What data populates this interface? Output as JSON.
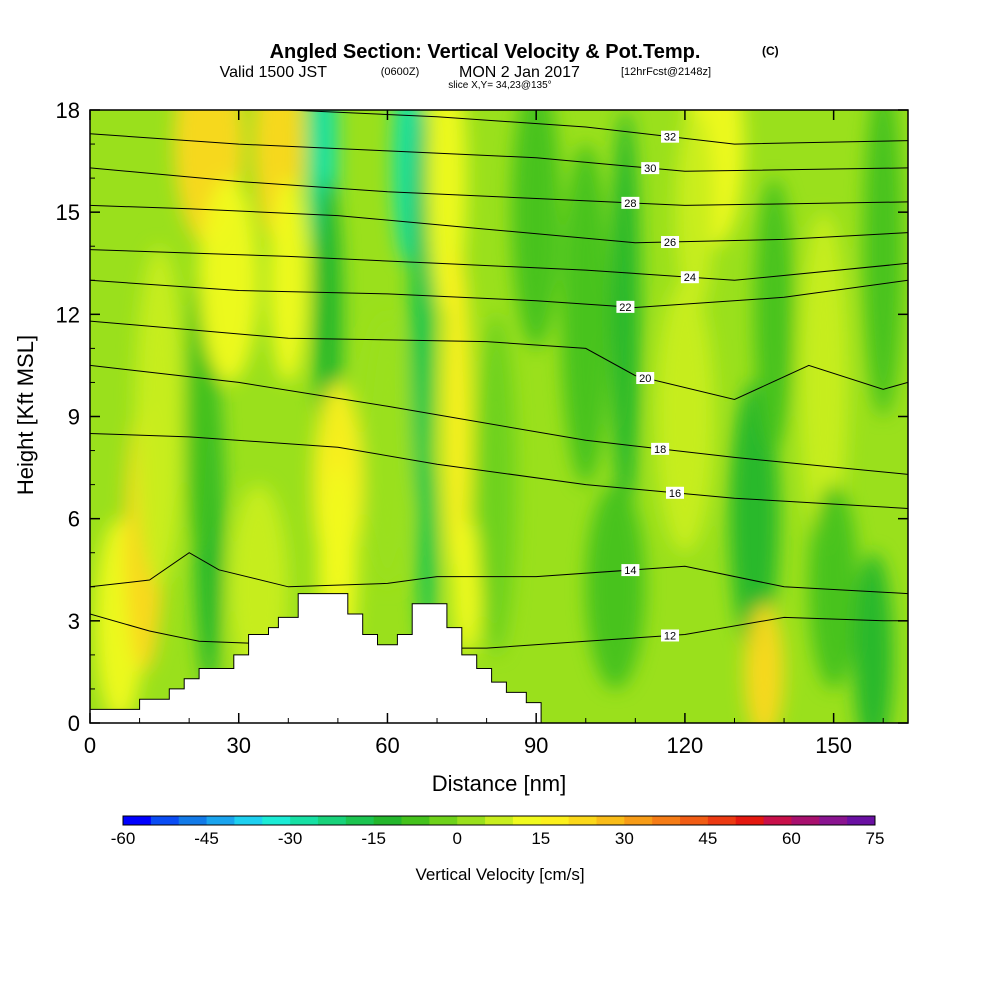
{
  "header": {
    "title": "Angled Section: Vertical Velocity & Pot.Temp.",
    "title_mark": "(C)",
    "valid_label": "Valid 1500 JST",
    "zulu": "(0600Z)",
    "date": "MON 2 Jan 2017",
    "forecast": "[12hrFcst@2148z]",
    "slice": "slice X,Y= 34,23@135°"
  },
  "chart_data": {
    "type": "heatmap",
    "xlabel": "Distance [nm]",
    "ylabel": "Height [Kft MSL]",
    "xlim": [
      0,
      165
    ],
    "ylim": [
      0,
      18
    ],
    "x_ticks": [
      0,
      30,
      60,
      90,
      120,
      150
    ],
    "y_ticks": [
      0,
      3,
      6,
      9,
      12,
      15,
      18
    ],
    "colorbar": {
      "label": "Vertical Velocity [cm/s]",
      "ticks": [
        -60,
        -45,
        -30,
        -15,
        0,
        15,
        30,
        45,
        60,
        75
      ],
      "min": -60,
      "max": 75,
      "step": 5,
      "colors": [
        "#0000ff",
        "#0a4cf4",
        "#127ae8",
        "#1aa4ee",
        "#1ed0f0",
        "#1cecd6",
        "#17e0a4",
        "#18d27a",
        "#1cc450",
        "#24b62c",
        "#44c21c",
        "#6ed21a",
        "#9ae01c",
        "#c8ee1e",
        "#f0fa1e",
        "#fcf01c",
        "#fbd81a",
        "#f9bc18",
        "#f79c17",
        "#f57c16",
        "#f15c14",
        "#ec3a12",
        "#e41810",
        "#c8104a",
        "#a8106e",
        "#8a1490",
        "#6a10a2"
      ]
    },
    "velocity_field": {
      "description_units": "cm/s",
      "background": 2,
      "cells": [
        {
          "x": 6,
          "y": 3,
          "sx": 5,
          "sy": 3,
          "v": 12
        },
        {
          "x": 11,
          "y": 5.5,
          "sx": 4,
          "sy": 4,
          "v": 22
        },
        {
          "x": 14,
          "y": 9,
          "sx": 5,
          "sy": 5,
          "v": 8
        },
        {
          "x": 24,
          "y": 6,
          "sx": 3,
          "sy": 5,
          "v": -14
        },
        {
          "x": 22,
          "y": 9,
          "sx": 3,
          "sy": 4,
          "v": -8
        },
        {
          "x": 24,
          "y": 17,
          "sx": 7,
          "sy": 3,
          "v": 22
        },
        {
          "x": 28,
          "y": 13,
          "sx": 6,
          "sy": 3,
          "v": 10
        },
        {
          "x": 38,
          "y": 17,
          "sx": 5,
          "sy": 3,
          "v": 24
        },
        {
          "x": 40,
          "y": 13,
          "sx": 4,
          "sy": 3,
          "v": 14
        },
        {
          "x": 34,
          "y": 4,
          "sx": 6,
          "sy": 3,
          "v": 8
        },
        {
          "x": 47,
          "y": 17,
          "sx": 3,
          "sy": 4,
          "v": -30
        },
        {
          "x": 48,
          "y": 12,
          "sx": 3,
          "sy": 4,
          "v": -14
        },
        {
          "x": 50,
          "y": 7,
          "sx": 5,
          "sy": 3,
          "v": 16
        },
        {
          "x": 50,
          "y": 4.5,
          "sx": 4,
          "sy": 3,
          "v": 10
        },
        {
          "x": 60,
          "y": 8,
          "sx": 5,
          "sy": 4,
          "v": 2
        },
        {
          "x": 64,
          "y": 16.5,
          "sx": 3,
          "sy": 3,
          "v": -28
        },
        {
          "x": 67,
          "y": 12,
          "sx": 2.5,
          "sy": 6,
          "v": -20
        },
        {
          "x": 68,
          "y": 5,
          "sx": 2,
          "sy": 3,
          "v": -18
        },
        {
          "x": 72,
          "y": 16,
          "sx": 4,
          "sy": 4,
          "v": 14
        },
        {
          "x": 74,
          "y": 9,
          "sx": 3,
          "sy": 5,
          "v": 16
        },
        {
          "x": 76,
          "y": 4,
          "sx": 3,
          "sy": 2,
          "v": 14
        },
        {
          "x": 82,
          "y": 7,
          "sx": 4,
          "sy": 5,
          "v": -4
        },
        {
          "x": 90,
          "y": 15,
          "sx": 5,
          "sy": 4,
          "v": -6
        },
        {
          "x": 100,
          "y": 12,
          "sx": 5,
          "sy": 5,
          "v": -10
        },
        {
          "x": 108,
          "y": 12,
          "sx": 3,
          "sy": 6,
          "v": -14
        },
        {
          "x": 106,
          "y": 4,
          "sx": 6,
          "sy": 3,
          "v": -6
        },
        {
          "x": 120,
          "y": 9,
          "sx": 6,
          "sy": 4,
          "v": 6
        },
        {
          "x": 126,
          "y": 17,
          "sx": 6,
          "sy": 3,
          "v": 14
        },
        {
          "x": 122,
          "y": 15,
          "sx": 4,
          "sy": 3,
          "v": 8
        },
        {
          "x": 134,
          "y": 6,
          "sx": 5,
          "sy": 4,
          "v": -14
        },
        {
          "x": 138,
          "y": 12,
          "sx": 4,
          "sy": 4,
          "v": -10
        },
        {
          "x": 136,
          "y": 1.5,
          "sx": 4,
          "sy": 2,
          "v": 20
        },
        {
          "x": 148,
          "y": 10,
          "sx": 5,
          "sy": 5,
          "v": 6
        },
        {
          "x": 150,
          "y": 4,
          "sx": 5,
          "sy": 3,
          "v": -10
        },
        {
          "x": 158,
          "y": 2,
          "sx": 4,
          "sy": 3,
          "v": -14
        },
        {
          "x": 160,
          "y": 14,
          "sx": 4,
          "sy": 5,
          "v": -6
        }
      ]
    },
    "terrain": [
      [
        0,
        0.4
      ],
      [
        10,
        0.4
      ],
      [
        10,
        0.7
      ],
      [
        16,
        0.7
      ],
      [
        16,
        1
      ],
      [
        19,
        1
      ],
      [
        19,
        1.3
      ],
      [
        22,
        1.3
      ],
      [
        22,
        1.6
      ],
      [
        29,
        1.6
      ],
      [
        29,
        2
      ],
      [
        32,
        2
      ],
      [
        32,
        2.6
      ],
      [
        36,
        2.6
      ],
      [
        36,
        2.8
      ],
      [
        38,
        2.8
      ],
      [
        38,
        3.1
      ],
      [
        42,
        3.1
      ],
      [
        42,
        3.8
      ],
      [
        52,
        3.8
      ],
      [
        52,
        3.2
      ],
      [
        55,
        3.2
      ],
      [
        55,
        2.6
      ],
      [
        58,
        2.6
      ],
      [
        58,
        2.3
      ],
      [
        62,
        2.3
      ],
      [
        62,
        2.6
      ],
      [
        65,
        2.6
      ],
      [
        65,
        3.5
      ],
      [
        72,
        3.5
      ],
      [
        72,
        2.8
      ],
      [
        75,
        2.8
      ],
      [
        75,
        2
      ],
      [
        78,
        2
      ],
      [
        78,
        1.6
      ],
      [
        81,
        1.6
      ],
      [
        81,
        1.2
      ],
      [
        84,
        1.2
      ],
      [
        84,
        0.9
      ],
      [
        88,
        0.9
      ],
      [
        88,
        0.6
      ],
      [
        91,
        0.6
      ],
      [
        91,
        0
      ],
      [
        0,
        0
      ]
    ],
    "isentropes": [
      {
        "theta": 12,
        "pts": [
          [
            0,
            3.2
          ],
          [
            12,
            2.7
          ],
          [
            22,
            2.4
          ],
          [
            60,
            2.2
          ],
          [
            80,
            2.2
          ],
          [
            100,
            2.4
          ],
          [
            120,
            2.6
          ],
          [
            140,
            3.1
          ],
          [
            160,
            3.0
          ],
          [
            165,
            3.0
          ]
        ],
        "label_x": 117
      },
      {
        "theta": 14,
        "pts": [
          [
            0,
            4.0
          ],
          [
            12,
            4.2
          ],
          [
            20,
            5.0
          ],
          [
            26,
            4.5
          ],
          [
            40,
            4.0
          ],
          [
            60,
            4.1
          ],
          [
            70,
            4.3
          ],
          [
            90,
            4.3
          ],
          [
            120,
            4.6
          ],
          [
            140,
            4.0
          ],
          [
            165,
            3.8
          ]
        ],
        "label_x": 109
      },
      {
        "theta": 16,
        "pts": [
          [
            0,
            8.5
          ],
          [
            20,
            8.4
          ],
          [
            50,
            8.1
          ],
          [
            70,
            7.6
          ],
          [
            100,
            7.0
          ],
          [
            130,
            6.6
          ],
          [
            165,
            6.3
          ]
        ],
        "label_x": 118
      },
      {
        "theta": 18,
        "pts": [
          [
            0,
            10.5
          ],
          [
            30,
            10.0
          ],
          [
            60,
            9.3
          ],
          [
            100,
            8.3
          ],
          [
            130,
            7.8
          ],
          [
            165,
            7.3
          ]
        ],
        "label_x": 115
      },
      {
        "theta": 20,
        "pts": [
          [
            0,
            11.8
          ],
          [
            40,
            11.3
          ],
          [
            80,
            11.2
          ],
          [
            100,
            11.0
          ],
          [
            110,
            10.2
          ],
          [
            130,
            9.5
          ],
          [
            145,
            10.5
          ],
          [
            160,
            9.8
          ],
          [
            165,
            10.0
          ]
        ],
        "label_x": 112
      },
      {
        "theta": 22,
        "pts": [
          [
            0,
            13.0
          ],
          [
            30,
            12.7
          ],
          [
            60,
            12.6
          ],
          [
            90,
            12.4
          ],
          [
            110,
            12.2
          ],
          [
            140,
            12.5
          ],
          [
            165,
            13.0
          ]
        ],
        "label_x": 108
      },
      {
        "theta": 24,
        "pts": [
          [
            0,
            13.9
          ],
          [
            40,
            13.7
          ],
          [
            70,
            13.5
          ],
          [
            100,
            13.3
          ],
          [
            130,
            13.0
          ],
          [
            165,
            13.5
          ]
        ],
        "label_x": 121
      },
      {
        "theta": 26,
        "pts": [
          [
            0,
            15.2
          ],
          [
            20,
            15.1
          ],
          [
            50,
            14.9
          ],
          [
            80,
            14.5
          ],
          [
            110,
            14.1
          ],
          [
            140,
            14.2
          ],
          [
            165,
            14.4
          ]
        ],
        "label_x": 117
      },
      {
        "theta": 28,
        "pts": [
          [
            0,
            16.3
          ],
          [
            30,
            15.9
          ],
          [
            60,
            15.6
          ],
          [
            90,
            15.4
          ],
          [
            120,
            15.2
          ],
          [
            165,
            15.3
          ]
        ],
        "label_x": 109
      },
      {
        "theta": 30,
        "pts": [
          [
            0,
            17.3
          ],
          [
            30,
            17.0
          ],
          [
            60,
            16.8
          ],
          [
            90,
            16.6
          ],
          [
            120,
            16.2
          ],
          [
            165,
            16.3
          ]
        ],
        "label_x": 113
      },
      {
        "theta": 32,
        "pts": [
          [
            0,
            18.2
          ],
          [
            40,
            18.0
          ],
          [
            70,
            17.8
          ],
          [
            100,
            17.5
          ],
          [
            130,
            17.0
          ],
          [
            165,
            17.1
          ]
        ],
        "label_x": 117
      }
    ]
  }
}
